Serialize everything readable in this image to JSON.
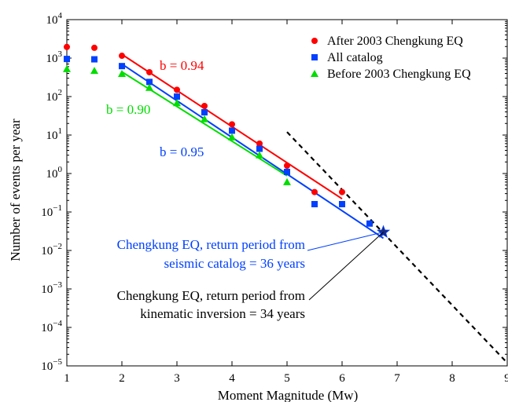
{
  "chart_data": {
    "type": "scatter",
    "xlabel": "Moment Magnitude (Mw)",
    "ylabel": "Number of events per year",
    "xlim": [
      1,
      9
    ],
    "ylim": [
      1e-05,
      10000
    ],
    "yscale": "log",
    "x_ticks": [
      1,
      2,
      3,
      4,
      5,
      6,
      7,
      8,
      9
    ],
    "y_ticks": [
      {
        "value": 1e-05,
        "base": "10",
        "exp": "−5"
      },
      {
        "value": 0.0001,
        "base": "10",
        "exp": "−4"
      },
      {
        "value": 0.001,
        "base": "10",
        "exp": "−3"
      },
      {
        "value": 0.01,
        "base": "10",
        "exp": "−2"
      },
      {
        "value": 0.1,
        "base": "10",
        "exp": "−1"
      },
      {
        "value": 1,
        "base": "10",
        "exp": "0"
      },
      {
        "value": 10,
        "base": "10",
        "exp": "1"
      },
      {
        "value": 100,
        "base": "10",
        "exp": "2"
      },
      {
        "value": 1000,
        "base": "10",
        "exp": "3"
      },
      {
        "value": 10000,
        "base": "10",
        "exp": "4"
      }
    ],
    "grid": false,
    "legend_position": "top-right",
    "series": [
      {
        "name": "After 2003 Chengkung EQ",
        "marker": "circle",
        "color": "#ff0000",
        "x": [
          1,
          1.5,
          2,
          2.5,
          3,
          3.5,
          4,
          4.5,
          5,
          5.5,
          6
        ],
        "y": [
          1950,
          1850,
          1150,
          430,
          150,
          57,
          19,
          6,
          1.6,
          0.33,
          0.33
        ]
      },
      {
        "name": "All catalog",
        "marker": "square",
        "color": "#0040ff",
        "x": [
          1,
          1.5,
          2,
          2.5,
          3,
          3.5,
          4,
          4.5,
          5,
          5.5,
          6,
          6.5
        ],
        "y": [
          950,
          930,
          620,
          240,
          100,
          39,
          13,
          4.4,
          1.1,
          0.16,
          0.16,
          0.05
        ]
      },
      {
        "name": "Before 2003 Chengkung EQ",
        "marker": "triangle",
        "color": "#00dd00",
        "x": [
          1,
          1.5,
          2,
          2.5,
          3,
          3.5,
          4,
          4.5,
          5
        ],
        "y": [
          520,
          470,
          390,
          170,
          68,
          26,
          8.8,
          3,
          0.6
        ]
      }
    ],
    "fit_lines": [
      {
        "label": "b = 0.94",
        "color": "#ff0000",
        "x": [
          2,
          6
        ],
        "y": [
          1250,
          0.22
        ]
      },
      {
        "label": "b = 0.90",
        "color": "#00dd00",
        "x": [
          2,
          5
        ],
        "y": [
          440,
          0.87
        ]
      },
      {
        "label": "b = 0.95",
        "color": "#0040ff",
        "x": [
          2,
          6.75
        ],
        "y": [
          700,
          0.0208
        ]
      }
    ],
    "dashed_line": {
      "color": "#000000",
      "x": [
        5,
        9
      ],
      "y": [
        12,
        1.2e-05
      ]
    },
    "star": {
      "x": 6.75,
      "y": 0.03,
      "color": "#1a2a7a"
    },
    "annotations": [
      {
        "lines": [
          "Chengkung EQ, return period from",
          "seismic catalog = 36 years"
        ],
        "color": "#0040ff"
      },
      {
        "lines": [
          "Chengkung EQ, return period from",
          "kinematic inversion = 34 years"
        ],
        "color": "#000000"
      }
    ]
  }
}
